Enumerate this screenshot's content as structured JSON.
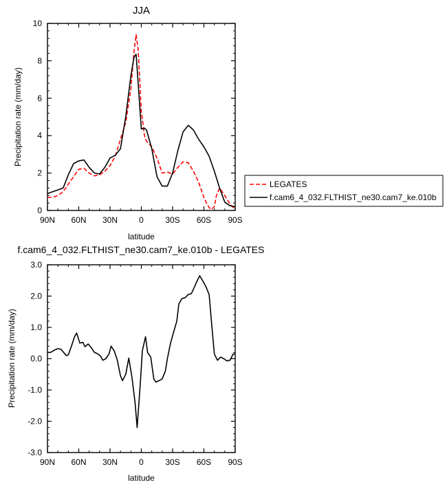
{
  "chart_data": [
    {
      "type": "line",
      "title": "JJA",
      "xlabel": "latitude",
      "ylabel": "Precipitation rate (mm/day)",
      "xlim": [
        90,
        -90
      ],
      "ylim": [
        0,
        10
      ],
      "x_ticks": [
        90,
        60,
        30,
        0,
        -30,
        -60,
        -90
      ],
      "x_tick_labels": [
        "90N",
        "60N",
        "30N",
        "0",
        "30S",
        "60S",
        "90S"
      ],
      "y_ticks": [
        0,
        2,
        4,
        6,
        8,
        10
      ],
      "y_tick_labels": [
        "0",
        "2",
        "4",
        "6",
        "8",
        "10"
      ],
      "legend_position": "right",
      "series": [
        {
          "name": "LEGATES",
          "color": "#ff0000",
          "dash": "dashed",
          "x": [
            90,
            85,
            80,
            75,
            70,
            65,
            60,
            55,
            50,
            45,
            40,
            35,
            30,
            25,
            20,
            15,
            10,
            7,
            5,
            3,
            0,
            -3,
            -5,
            -10,
            -15,
            -20,
            -25,
            -30,
            -35,
            -40,
            -45,
            -50,
            -55,
            -60,
            -62,
            -65,
            -67,
            -70,
            -72,
            -75,
            -80,
            -85,
            -90
          ],
          "y": [
            0.7,
            0.7,
            0.8,
            1.0,
            1.4,
            1.8,
            2.2,
            2.25,
            2.0,
            1.85,
            1.9,
            2.1,
            2.4,
            2.9,
            3.8,
            4.7,
            6.5,
            8.5,
            9.4,
            8.6,
            5.3,
            4.0,
            3.7,
            3.4,
            2.8,
            2.0,
            2.05,
            1.95,
            2.3,
            2.6,
            2.55,
            2.1,
            1.5,
            0.7,
            0.45,
            0.15,
            0.05,
            0.2,
            0.8,
            1.2,
            0.8,
            0.35,
            0.05
          ]
        },
        {
          "name": "f.cam6_4_032.FLTHIST_ne30.cam7_ke.010b",
          "color": "#000000",
          "dash": "solid",
          "x": [
            90,
            85,
            80,
            75,
            70,
            65,
            60,
            55,
            50,
            45,
            40,
            35,
            30,
            25,
            20,
            15,
            10,
            7,
            5,
            3,
            0,
            -3,
            -5,
            -10,
            -15,
            -20,
            -25,
            -30,
            -35,
            -40,
            -45,
            -50,
            -55,
            -60,
            -65,
            -70,
            -75,
            -80,
            -85,
            -90
          ],
          "y": [
            0.9,
            1.0,
            1.1,
            1.2,
            1.9,
            2.5,
            2.65,
            2.7,
            2.3,
            2.0,
            1.95,
            2.3,
            2.8,
            2.95,
            3.3,
            5.0,
            7.2,
            8.2,
            8.35,
            6.8,
            4.35,
            4.4,
            4.3,
            3.3,
            1.8,
            1.3,
            1.3,
            2.0,
            3.2,
            4.2,
            4.55,
            4.3,
            3.8,
            3.4,
            2.9,
            2.1,
            1.2,
            0.45,
            0.25,
            0.2
          ]
        }
      ]
    },
    {
      "type": "line",
      "title": "f.cam6_4_032.FLTHIST_ne30.cam7_ke.010b - LEGATES",
      "xlabel": "latitude",
      "ylabel": "Precipitation rate (mm/day)",
      "xlim": [
        90,
        -90
      ],
      "ylim": [
        -3,
        3
      ],
      "x_ticks": [
        90,
        60,
        30,
        0,
        -30,
        -60,
        -90
      ],
      "x_tick_labels": [
        "90N",
        "60N",
        "30N",
        "0",
        "30S",
        "60S",
        "90S"
      ],
      "y_ticks": [
        -3,
        -2,
        -1,
        0,
        1,
        2,
        3
      ],
      "y_tick_labels": [
        "-3.0",
        "-2.0",
        "-1.0",
        "0.0",
        "1.0",
        "2.0",
        "3.0"
      ],
      "series": [
        {
          "color": "#000000",
          "dash": "solid",
          "x": [
            90,
            87,
            83,
            80,
            77,
            75,
            72,
            70,
            67,
            64,
            62,
            59,
            56,
            54,
            51,
            48,
            45,
            42,
            39,
            37,
            34,
            31,
            29,
            26,
            23,
            20,
            18,
            15,
            12,
            9,
            6,
            4,
            1,
            -1,
            -4,
            -6,
            -9,
            -12,
            -14,
            -17,
            -20,
            -23,
            -25,
            -28,
            -31,
            -34,
            -36,
            -39,
            -42,
            -45,
            -48,
            -51,
            -53,
            -56,
            -59,
            -62,
            -65,
            -68,
            -70,
            -73,
            -76,
            -79,
            -82,
            -85,
            -88,
            -90
          ],
          "y": [
            0.2,
            0.2,
            0.28,
            0.32,
            0.3,
            0.22,
            0.1,
            0.12,
            0.4,
            0.7,
            0.82,
            0.5,
            0.52,
            0.38,
            0.47,
            0.35,
            0.2,
            0.16,
            0.08,
            -0.05,
            0.0,
            0.15,
            0.4,
            0.25,
            -0.05,
            -0.55,
            -0.7,
            -0.5,
            0.02,
            -0.6,
            -1.4,
            -2.2,
            -0.8,
            0.25,
            0.7,
            0.2,
            0.05,
            -0.65,
            -0.75,
            -0.7,
            -0.65,
            -0.4,
            0.0,
            0.5,
            0.85,
            1.2,
            1.75,
            1.92,
            1.95,
            2.05,
            2.08,
            2.3,
            2.45,
            2.65,
            2.48,
            2.3,
            2.05,
            0.9,
            0.15,
            -0.05,
            0.05,
            0.0,
            -0.07,
            -0.05,
            0.15,
            0.15
          ]
        }
      ]
    }
  ]
}
